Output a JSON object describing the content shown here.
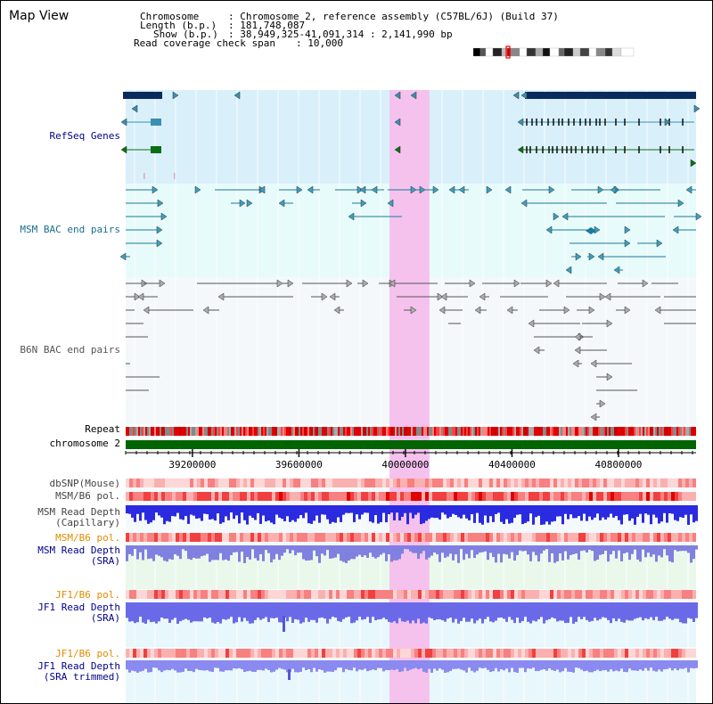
{
  "title": "Map View",
  "header": {
    "chromosome_label": "Chromosome",
    "chromosome_value": ": Chromosome 2, reference assembly (C57BL/6J) (Build 37)",
    "length_label": "Length (b.p.)",
    "length_value": ": 181,748,087",
    "show_label": "Show (b.p.)",
    "show_value": ": 38,949,325-41,091,314 : 2,141,990 bp",
    "coverage_label": "Read coverage check span",
    "coverage_value": ": 10,000"
  },
  "tracks": {
    "refseq": "RefSeq Genes",
    "msm_bac": "MSM BAC end pairs",
    "b6n_bac": "B6N BAC end pairs",
    "repeat": "Repeat",
    "chromosome": "chromosome 2",
    "dbsnp": "dbSNP(Mouse)",
    "msm_b6_pol_1": "MSM/B6 pol.",
    "msm_read_depth_cap_1": "MSM Read Depth",
    "msm_read_depth_cap_2": "(Capillary)",
    "msm_b6_pol_2": "MSM/B6 pol.",
    "msm_read_depth_sra_1": "MSM Read Depth",
    "msm_read_depth_sra_2": "(SRA)",
    "jf1_b6_pol_1": "JF1/B6 pol.",
    "jf1_read_depth_sra_1": "JF1 Read Depth",
    "jf1_read_depth_sra_2": "(SRA)",
    "jf1_b6_pol_2": "JF1/B6 pol.",
    "jf1_read_depth_trim_1": "JF1 Read Depth",
    "jf1_read_depth_trim_2": "(SRA trimmed)"
  },
  "axis": {
    "ticks": [
      "39200000",
      "39600000",
      "40000000",
      "40400000",
      "40800000"
    ],
    "tick_values": [
      39200000,
      39600000,
      40000000,
      40400000,
      40800000
    ],
    "start": 38949325,
    "end": 41091314
  },
  "highlight_region_bp": [
    39940000,
    40090000
  ],
  "colors": {
    "refseq_bg": "#d9f0fb",
    "msm_bg": "#e8fbfb",
    "b6n_bg": "#f4f8fa",
    "highlight": "#f5d0f0",
    "refseq_dark": "#0a2a5c",
    "refseq_teal": "#3a8fb0",
    "refseq_green": "#0a6f10",
    "msm_feature": "#1a7a9a",
    "b6n_feature": "#707070",
    "chromosome_bar": "#006400",
    "label_dark_gray": "#444444",
    "label_blue": "#00008b",
    "label_msm": "#1a6f8a",
    "label_orange": "#e08c00",
    "depth_blue": "#2a2ae0",
    "depth_light_blue": "#7a7af0"
  },
  "icons": {
    "cytoband": "chromosome-ideogram",
    "feature_arrow": "triangle-arrow"
  }
}
